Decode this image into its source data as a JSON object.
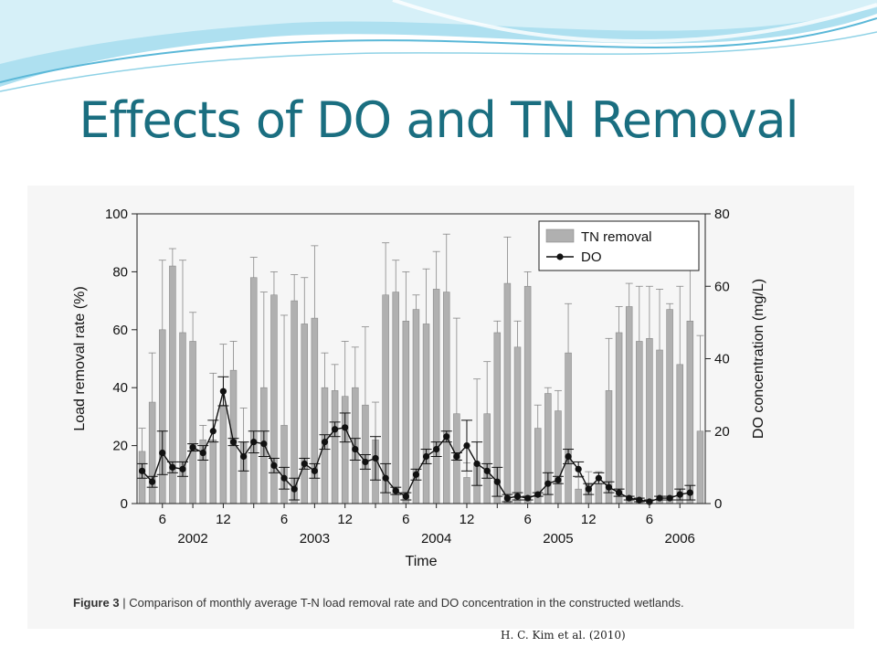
{
  "slide": {
    "title": "Effects of DO and TN Removal",
    "caption_label": "Figure 3",
    "caption_text": "Comparison of monthly average T-N load removal rate and DO concentration in the constructed wetlands.",
    "citation": "H. C. Kim et al. (2010)",
    "accent_color": "#1a6e80",
    "banner_colors": [
      "#7fd0e8",
      "#b8e4f2",
      "#e8f6fb"
    ]
  },
  "chart_data": {
    "type": "bar",
    "xlabel": "Time",
    "ylabel": "Load removal rate (%)",
    "y2label": "DO concentration (mg/L)",
    "ylim": [
      0,
      100
    ],
    "y2lim": [
      0,
      80
    ],
    "yticks": [
      0,
      20,
      40,
      60,
      80,
      100
    ],
    "y2ticks": [
      0,
      20,
      40,
      60,
      80
    ],
    "months_per_year": 12,
    "start_month": 4,
    "x_tick_labels": [
      "6",
      "12",
      "6",
      "12",
      "6",
      "12",
      "6",
      "12",
      "6",
      "12"
    ],
    "year_labels": [
      "2002",
      "2003",
      "2004",
      "2005",
      "2006"
    ],
    "legend": {
      "position": "top-right",
      "bar_label": "TN removal",
      "line_label": "DO"
    },
    "colors": {
      "bar": "#b0b0b0",
      "bar_edge": "#8a8a8a",
      "line": "#111111",
      "error": "#888888"
    },
    "series": [
      {
        "name": "TN removal",
        "type": "bar",
        "values": [
          18,
          35,
          60,
          82,
          59,
          56,
          22,
          22,
          34,
          46,
          21,
          78,
          40,
          72,
          27,
          70,
          62,
          64,
          40,
          39,
          37,
          40,
          34,
          22,
          72,
          73,
          63,
          67,
          62,
          74,
          73,
          31,
          9,
          14,
          31,
          59,
          76,
          54,
          75,
          26,
          38,
          32,
          52,
          5,
          7,
          7,
          39,
          59,
          68,
          56,
          57,
          53,
          67,
          48,
          63,
          25
        ],
        "upper": [
          26,
          52,
          84,
          88,
          84,
          66,
          27,
          45,
          55,
          56,
          33,
          85,
          73,
          80,
          65,
          79,
          78,
          89,
          52,
          48,
          56,
          54,
          61,
          35,
          90,
          84,
          80,
          72,
          81,
          87,
          93,
          64,
          14,
          43,
          49,
          63,
          92,
          63,
          80,
          34,
          40,
          39,
          69,
          9,
          11,
          11,
          57,
          68,
          76,
          75,
          75,
          74,
          69,
          75,
          81,
          58
        ]
      },
      {
        "name": "DO",
        "type": "line",
        "values": [
          9,
          6,
          14,
          10,
          9.5,
          15.5,
          14,
          20,
          31,
          17,
          13,
          17,
          16.5,
          10.5,
          7,
          4,
          11,
          9,
          17,
          20.5,
          21,
          15,
          11.5,
          12.5,
          7,
          3.5,
          2,
          8,
          13,
          15,
          18.5,
          13,
          16,
          11,
          9,
          6,
          1.5,
          2,
          1.5,
          2.5,
          5.5,
          6.5,
          13,
          9.5,
          4,
          7,
          4.5,
          3,
          1.5,
          1,
          0.5,
          1.5,
          1.5,
          2.5,
          3
        ],
        "errors": [
          2,
          1.5,
          6,
          1.5,
          2,
          1,
          2,
          3,
          4,
          1,
          4,
          3,
          3.5,
          2,
          3,
          3,
          1.5,
          2,
          2,
          2,
          4,
          3,
          2,
          6,
          4,
          1,
          1,
          1.5,
          2,
          2,
          1.5,
          1,
          7,
          6,
          2,
          4,
          1,
          1,
          0.5,
          0.5,
          3,
          1,
          2,
          2,
          1.5,
          1.5,
          1.5,
          1,
          0.5,
          0.5,
          0.5,
          0.5,
          0.5,
          1.5,
          2
        ]
      }
    ]
  }
}
